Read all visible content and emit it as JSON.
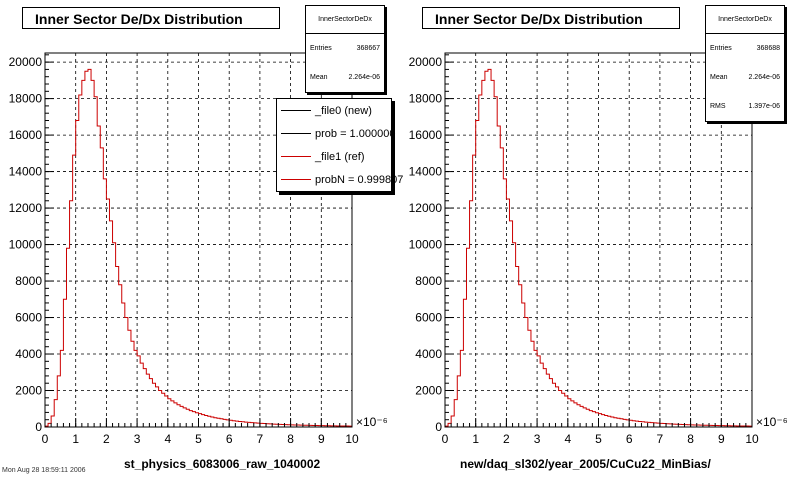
{
  "footer": "Mon Aug 28 18:59:11 2006",
  "chart_data": [
    {
      "type": "bar",
      "title": "Inner Sector De/Dx Distribution",
      "xlabel": "st_physics_6083006_raw_1040002",
      "x_exponent": "×10⁻⁶",
      "xlim": [
        0,
        10
      ],
      "ylim": [
        0,
        20500
      ],
      "x_ticks": [
        "0",
        "1",
        "2",
        "3",
        "4",
        "5",
        "6",
        "7",
        "8",
        "9",
        "10"
      ],
      "y_ticks": [
        "0",
        "2000",
        "4000",
        "6000",
        "8000",
        "10000",
        "12000",
        "14000",
        "16000",
        "18000",
        "20000"
      ],
      "grid": true,
      "bin_width": 0.1,
      "bins_start": 0,
      "stats": {
        "title": "InnerSectorDeDx",
        "rows": [
          {
            "label": "Entries",
            "value": "368667"
          },
          {
            "label": "Mean",
            "value": "2.264e-06"
          }
        ]
      },
      "legend": {
        "position": "top-right",
        "entries": [
          {
            "label": "_file0 (new)",
            "color": "#000000"
          },
          {
            "label": "prob = 1.000000",
            "color": "#000000"
          },
          {
            "label": "_file1 (ref)",
            "color": "#cc0000"
          },
          {
            "label": "probN = 0.999807",
            "color": "#cc0000"
          }
        ]
      },
      "series": [
        {
          "color": "#cc0000",
          "values": [
            50,
            200,
            600,
            1500,
            2800,
            4200,
            7000,
            9800,
            12400,
            14900,
            16800,
            18200,
            19000,
            19500,
            19600,
            19000,
            18100,
            16500,
            15300,
            13600,
            12500,
            11300,
            10100,
            8800,
            7800,
            6800,
            6000,
            5300,
            4700,
            4200,
            3900,
            3500,
            3200,
            2900,
            2650,
            2400,
            2200,
            2000,
            1850,
            1700,
            1550,
            1430,
            1320,
            1220,
            1130,
            1050,
            970,
            900,
            840,
            780,
            730,
            680,
            630,
            590,
            550,
            510,
            480,
            450,
            420,
            390,
            370,
            345,
            320,
            300,
            285,
            270,
            255,
            240,
            225,
            210,
            200,
            190,
            180,
            170,
            160,
            150,
            143,
            136,
            130,
            124,
            118,
            112,
            107,
            102,
            97,
            93,
            89,
            85,
            81,
            77,
            73,
            70,
            67,
            64,
            61,
            58,
            56,
            54,
            52,
            50
          ]
        }
      ]
    },
    {
      "type": "bar",
      "title": "Inner Sector De/Dx Distribution",
      "xlabel": "new/daq_sl302/year_2005/CuCu22_MinBias/",
      "x_exponent": "×10⁻⁶",
      "xlim": [
        0,
        10
      ],
      "ylim": [
        0,
        20500
      ],
      "x_ticks": [
        "0",
        "1",
        "2",
        "3",
        "4",
        "5",
        "6",
        "7",
        "8",
        "9",
        "10"
      ],
      "y_ticks": [
        "0",
        "2000",
        "4000",
        "6000",
        "8000",
        "10000",
        "12000",
        "14000",
        "16000",
        "18000",
        "20000"
      ],
      "grid": true,
      "bin_width": 0.1,
      "bins_start": 0,
      "stats": {
        "title": "InnerSectorDeDx",
        "rows": [
          {
            "label": "Entries",
            "value": "368688"
          },
          {
            "label": "Mean",
            "value": "2.264e-06"
          },
          {
            "label": "RMS",
            "value": "1.397e-06"
          }
        ]
      },
      "series": [
        {
          "color": "#cc0000",
          "values": [
            50,
            200,
            600,
            1500,
            2800,
            4200,
            7000,
            9800,
            12400,
            14900,
            16800,
            18200,
            19000,
            19500,
            19600,
            19000,
            18100,
            16500,
            15300,
            13600,
            12500,
            11300,
            10100,
            8800,
            7800,
            6800,
            6000,
            5300,
            4700,
            4200,
            3900,
            3500,
            3200,
            2900,
            2650,
            2400,
            2200,
            2000,
            1850,
            1700,
            1550,
            1430,
            1320,
            1220,
            1130,
            1050,
            970,
            900,
            840,
            780,
            730,
            680,
            630,
            590,
            550,
            510,
            480,
            450,
            420,
            390,
            370,
            345,
            320,
            300,
            285,
            270,
            255,
            240,
            225,
            210,
            200,
            190,
            180,
            170,
            160,
            150,
            143,
            136,
            130,
            124,
            118,
            112,
            107,
            102,
            97,
            93,
            89,
            85,
            81,
            77,
            73,
            70,
            67,
            64,
            61,
            58,
            56,
            54,
            52,
            50
          ]
        }
      ]
    }
  ]
}
